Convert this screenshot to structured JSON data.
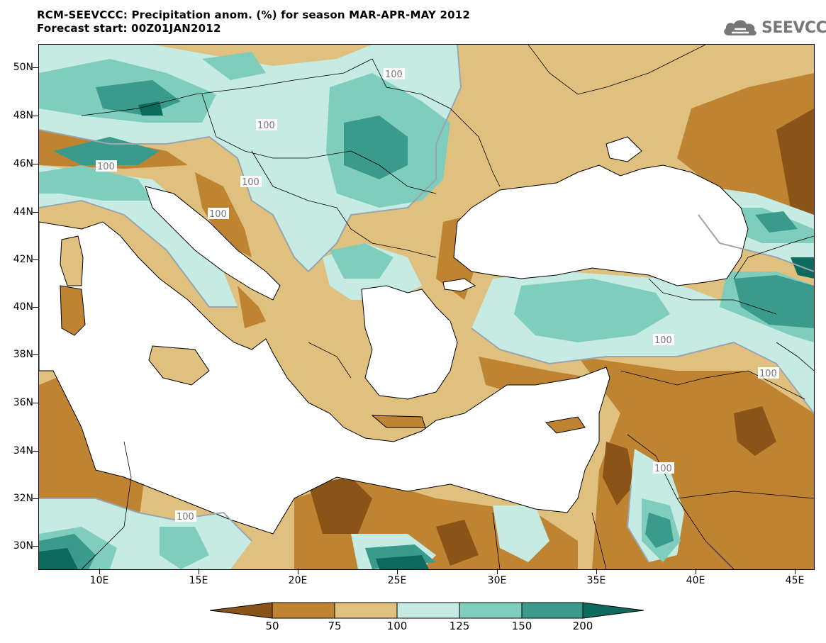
{
  "title": {
    "line1": "RCM-SEEVCCC: Precipitation anom. (%) for season MAR-APR-MAY 2012",
    "line2": "Forecast start: 00Z01JAN2012"
  },
  "logo": {
    "text": "SEEVCCC",
    "icon": "cloud-icon"
  },
  "map": {
    "lat_labels": [
      "50N",
      "48N",
      "46N",
      "44N",
      "42N",
      "40N",
      "38N",
      "36N",
      "34N",
      "32N",
      "30N"
    ],
    "lon_labels": [
      "10E",
      "15E",
      "20E",
      "25E",
      "30E",
      "35E",
      "40E",
      "45E"
    ],
    "contour_label": "100",
    "colors": {
      "lt50": "#8a5418",
      "50_75": "#bf8432",
      "75_100": "#e0c07f",
      "100_125": "#c6ebe3",
      "125_150": "#7fcdbd",
      "150_200": "#3a9a8b",
      "gt200": "#0d6b5e",
      "sea": "#ffffff"
    }
  },
  "legend": {
    "labels": [
      "50",
      "75",
      "100",
      "125",
      "150",
      "200"
    ],
    "colors": [
      "#8a5418",
      "#bf8432",
      "#e0c07f",
      "#c6ebe3",
      "#7fcdbd",
      "#3a9a8b",
      "#0d6b5e"
    ]
  }
}
